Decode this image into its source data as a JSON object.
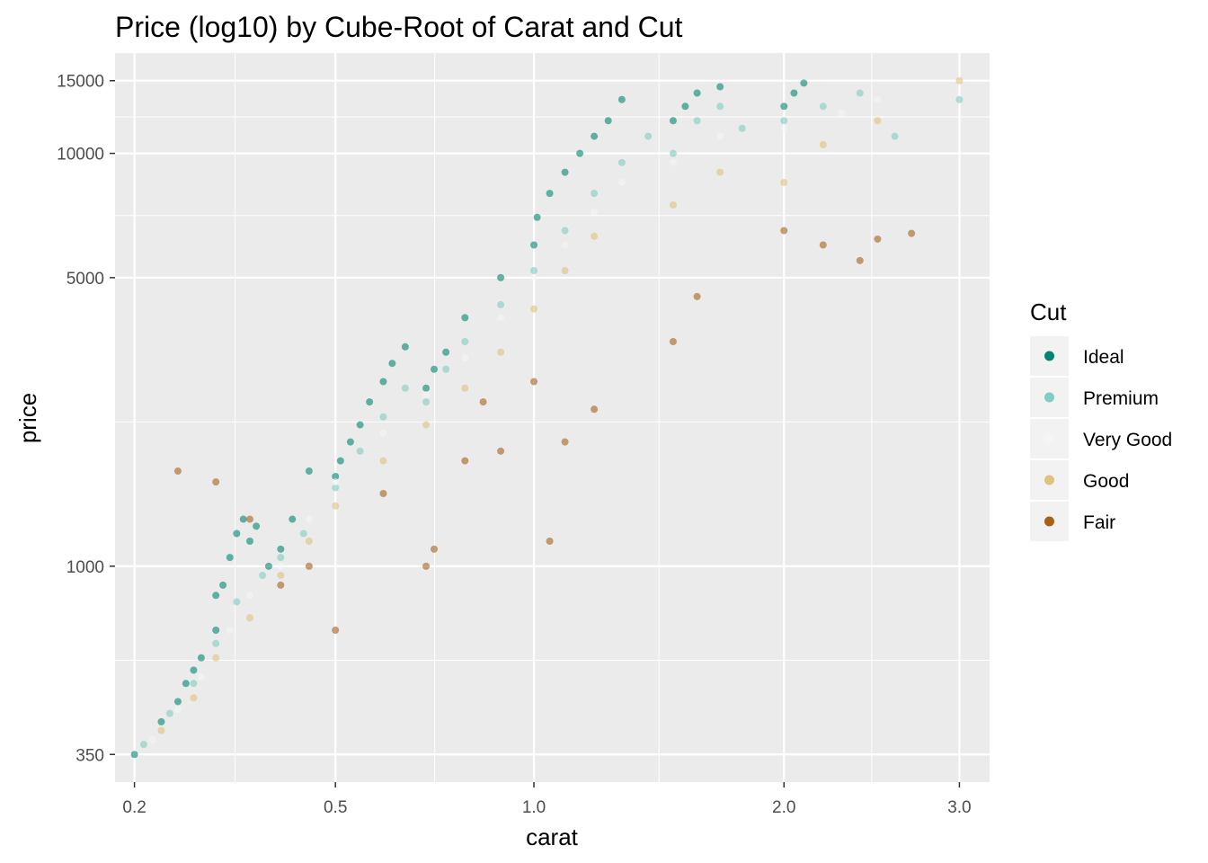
{
  "chart_data": {
    "type": "scatter",
    "title": "Price (log10) by Cube-Root of Carat and Cut",
    "xlabel": "carat",
    "ylabel": "price",
    "x_scale": "cube-root",
    "y_scale": "log10",
    "xlim": [
      0.18,
      3.2
    ],
    "ylim": [
      300,
      17500
    ],
    "x_ticks": [
      0.2,
      0.5,
      1.0,
      2.0,
      3.0
    ],
    "x_tick_labels": [
      "0.2",
      "0.5",
      "1.0",
      "2.0",
      "3.0"
    ],
    "y_ticks": [
      350,
      1000,
      5000,
      10000,
      15000
    ],
    "y_tick_labels": [
      "350",
      "1000",
      "5000",
      "10000",
      "15000"
    ],
    "grid": true,
    "background": "#ebebeb",
    "point_alpha": 0.6,
    "legend": {
      "title": "Cut",
      "position": "right",
      "entries": [
        {
          "label": "Ideal",
          "color": "#018571"
        },
        {
          "label": "Premium",
          "color": "#80cdc1"
        },
        {
          "label": "Very Good",
          "color": "#f5f5f5"
        },
        {
          "label": "Good",
          "color": "#dfc27d"
        },
        {
          "label": "Fair",
          "color": "#a6611a"
        }
      ]
    },
    "series": [
      {
        "name": "Ideal",
        "color": "#018571",
        "points": [
          [
            0.2,
            350
          ],
          [
            0.23,
            420
          ],
          [
            0.25,
            470
          ],
          [
            0.26,
            520
          ],
          [
            0.27,
            560
          ],
          [
            0.28,
            600
          ],
          [
            0.3,
            700
          ],
          [
            0.3,
            850
          ],
          [
            0.31,
            900
          ],
          [
            0.32,
            1050
          ],
          [
            0.33,
            1200
          ],
          [
            0.34,
            1300
          ],
          [
            0.35,
            1150
          ],
          [
            0.36,
            1250
          ],
          [
            0.38,
            1000
          ],
          [
            0.4,
            1100
          ],
          [
            0.42,
            1300
          ],
          [
            0.45,
            1700
          ],
          [
            0.5,
            1650
          ],
          [
            0.51,
            1800
          ],
          [
            0.53,
            2000
          ],
          [
            0.55,
            2200
          ],
          [
            0.57,
            2500
          ],
          [
            0.6,
            2800
          ],
          [
            0.62,
            3100
          ],
          [
            0.65,
            3400
          ],
          [
            0.7,
            2700
          ],
          [
            0.72,
            3000
          ],
          [
            0.75,
            3300
          ],
          [
            0.8,
            4000
          ],
          [
            0.9,
            5000
          ],
          [
            1.0,
            6000
          ],
          [
            1.01,
            7000
          ],
          [
            1.05,
            8000
          ],
          [
            1.1,
            9000
          ],
          [
            1.15,
            10000
          ],
          [
            1.2,
            11000
          ],
          [
            1.25,
            12000
          ],
          [
            1.3,
            13500
          ],
          [
            1.5,
            12000
          ],
          [
            1.55,
            13000
          ],
          [
            1.6,
            14000
          ],
          [
            1.7,
            14500
          ],
          [
            2.0,
            13000
          ],
          [
            2.05,
            14000
          ],
          [
            2.1,
            14800
          ]
        ]
      },
      {
        "name": "Premium",
        "color": "#80cdc1",
        "points": [
          [
            0.21,
            370
          ],
          [
            0.24,
            440
          ],
          [
            0.27,
            520
          ],
          [
            0.3,
            650
          ],
          [
            0.33,
            820
          ],
          [
            0.37,
            950
          ],
          [
            0.4,
            1050
          ],
          [
            0.44,
            1200
          ],
          [
            0.5,
            1550
          ],
          [
            0.55,
            1900
          ],
          [
            0.6,
            2300
          ],
          [
            0.65,
            2700
          ],
          [
            0.7,
            2500
          ],
          [
            0.75,
            3000
          ],
          [
            0.8,
            3500
          ],
          [
            0.9,
            4300
          ],
          [
            1.0,
            5200
          ],
          [
            1.1,
            6500
          ],
          [
            1.2,
            8000
          ],
          [
            1.3,
            9500
          ],
          [
            1.4,
            11000
          ],
          [
            1.5,
            10000
          ],
          [
            1.6,
            12000
          ],
          [
            1.7,
            13000
          ],
          [
            1.8,
            11500
          ],
          [
            2.0,
            12000
          ],
          [
            2.2,
            13000
          ],
          [
            2.4,
            14000
          ],
          [
            2.6,
            11000
          ],
          [
            3.0,
            13500
          ]
        ]
      },
      {
        "name": "Very Good",
        "color": "#f5f5f5",
        "points": [
          [
            0.22,
            380
          ],
          [
            0.25,
            450
          ],
          [
            0.28,
            540
          ],
          [
            0.32,
            700
          ],
          [
            0.35,
            850
          ],
          [
            0.4,
            1000
          ],
          [
            0.45,
            1300
          ],
          [
            0.5,
            1600
          ],
          [
            0.6,
            2100
          ],
          [
            0.7,
            2600
          ],
          [
            0.8,
            3200
          ],
          [
            0.9,
            4000
          ],
          [
            1.0,
            5000
          ],
          [
            1.1,
            6000
          ],
          [
            1.2,
            7200
          ],
          [
            1.3,
            8500
          ],
          [
            1.5,
            9500
          ],
          [
            1.7,
            11000
          ],
          [
            2.0,
            11500
          ],
          [
            2.3,
            12500
          ],
          [
            2.5,
            13500
          ]
        ]
      },
      {
        "name": "Good",
        "color": "#dfc27d",
        "points": [
          [
            0.23,
            400
          ],
          [
            0.27,
            480
          ],
          [
            0.3,
            600
          ],
          [
            0.35,
            750
          ],
          [
            0.4,
            950
          ],
          [
            0.45,
            1150
          ],
          [
            0.5,
            1400
          ],
          [
            0.6,
            1800
          ],
          [
            0.7,
            2200
          ],
          [
            0.8,
            2700
          ],
          [
            0.9,
            3300
          ],
          [
            1.0,
            4200
          ],
          [
            1.1,
            5200
          ],
          [
            1.2,
            6300
          ],
          [
            1.5,
            7500
          ],
          [
            1.7,
            9000
          ],
          [
            2.0,
            8500
          ],
          [
            2.2,
            10500
          ],
          [
            2.5,
            12000
          ],
          [
            3.0,
            15000
          ]
        ]
      },
      {
        "name": "Fair",
        "color": "#a6611a",
        "points": [
          [
            0.25,
            1700
          ],
          [
            0.3,
            1600
          ],
          [
            0.35,
            1300
          ],
          [
            0.4,
            900
          ],
          [
            0.45,
            1000
          ],
          [
            0.5,
            700
          ],
          [
            0.6,
            1500
          ],
          [
            0.7,
            1000
          ],
          [
            0.72,
            1100
          ],
          [
            0.8,
            1800
          ],
          [
            0.85,
            2500
          ],
          [
            0.9,
            1900
          ],
          [
            1.0,
            2800
          ],
          [
            1.05,
            1150
          ],
          [
            1.1,
            2000
          ],
          [
            1.2,
            2400
          ],
          [
            1.5,
            3500
          ],
          [
            1.6,
            4500
          ],
          [
            2.0,
            6500
          ],
          [
            2.2,
            6000
          ],
          [
            2.4,
            5500
          ],
          [
            2.5,
            6200
          ],
          [
            2.7,
            6400
          ]
        ]
      }
    ]
  }
}
